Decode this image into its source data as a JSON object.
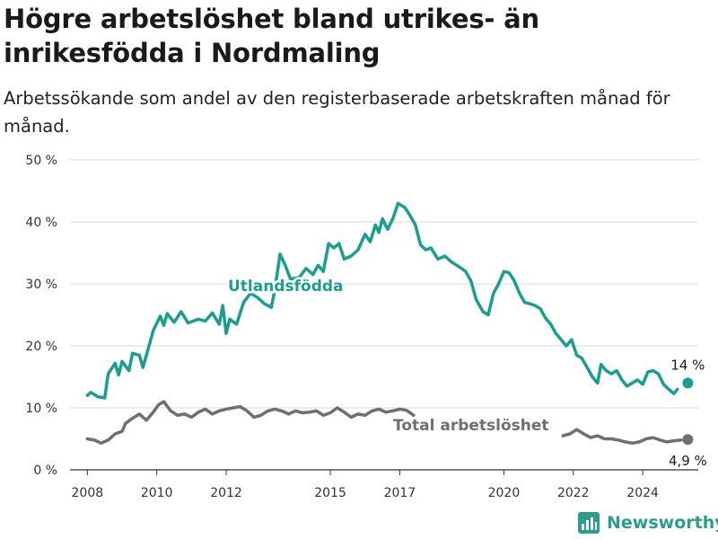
{
  "title": "Högre arbetslöshet bland utrikes- än inrikesfödda i Nordmaling",
  "subtitle": "Arbetssökande som andel av den registerbaserade arbetskraften månad för månad.",
  "brand": "Newsworthy",
  "colors": {
    "foreign": "#1a9e8f",
    "total": "#6f6f6f",
    "grid": "#d9d9d9",
    "text": "#1a1a1a"
  },
  "chart_data": {
    "type": "line",
    "ylim": [
      0,
      50
    ],
    "yticks": [
      0,
      10,
      20,
      30,
      40,
      50
    ],
    "ytick_labels": [
      "0 %",
      "10 %",
      "20 %",
      "30 %",
      "40 %",
      "50 %"
    ],
    "xlim": [
      2007.5,
      2025.6
    ],
    "xticks": [
      2008,
      2010,
      2012,
      2015,
      2017,
      2020,
      2022,
      2024
    ],
    "xtick_labels": [
      "2008",
      "2010",
      "2012",
      "2015",
      "2017",
      "2020",
      "2022",
      "2024"
    ],
    "grid": true,
    "series": [
      {
        "name": "Utlandsfödda",
        "end_label": "14 %",
        "points": [
          [
            2008.0,
            12.0
          ],
          [
            2008.1,
            12.5
          ],
          [
            2008.3,
            11.8
          ],
          [
            2008.5,
            11.6
          ],
          [
            2008.6,
            15.5
          ],
          [
            2008.8,
            17.2
          ],
          [
            2008.9,
            15.3
          ],
          [
            2009.0,
            17.5
          ],
          [
            2009.2,
            16.0
          ],
          [
            2009.3,
            18.8
          ],
          [
            2009.5,
            18.5
          ],
          [
            2009.6,
            16.5
          ],
          [
            2009.8,
            20.5
          ],
          [
            2009.9,
            22.5
          ],
          [
            2010.1,
            24.8
          ],
          [
            2010.2,
            23.3
          ],
          [
            2010.3,
            25.2
          ],
          [
            2010.5,
            23.8
          ],
          [
            2010.7,
            25.5
          ],
          [
            2010.9,
            23.7
          ],
          [
            2011.2,
            24.3
          ],
          [
            2011.4,
            24.0
          ],
          [
            2011.6,
            25.3
          ],
          [
            2011.8,
            23.5
          ],
          [
            2011.9,
            26.5
          ],
          [
            2012.0,
            22.0
          ],
          [
            2012.1,
            24.3
          ],
          [
            2012.3,
            23.5
          ],
          [
            2012.5,
            27.0
          ],
          [
            2012.7,
            28.5
          ],
          [
            2012.9,
            27.8
          ],
          [
            2013.1,
            26.8
          ],
          [
            2013.3,
            26.2
          ],
          [
            2013.4,
            29.0
          ],
          [
            2013.55,
            34.8
          ],
          [
            2013.7,
            33.0
          ],
          [
            2013.85,
            30.8
          ],
          [
            2014.1,
            31.0
          ],
          [
            2014.3,
            32.5
          ],
          [
            2014.5,
            31.5
          ],
          [
            2014.65,
            33.0
          ],
          [
            2014.8,
            32.0
          ],
          [
            2014.95,
            36.5
          ],
          [
            2015.1,
            35.8
          ],
          [
            2015.25,
            36.5
          ],
          [
            2015.4,
            34.0
          ],
          [
            2015.6,
            34.5
          ],
          [
            2015.8,
            35.5
          ],
          [
            2016.0,
            38.0
          ],
          [
            2016.15,
            36.8
          ],
          [
            2016.3,
            39.5
          ],
          [
            2016.4,
            38.3
          ],
          [
            2016.5,
            40.5
          ],
          [
            2016.65,
            38.8
          ],
          [
            2016.8,
            40.5
          ],
          [
            2016.95,
            43.0
          ],
          [
            2017.15,
            42.3
          ],
          [
            2017.3,
            41.0
          ],
          [
            2017.45,
            39.5
          ],
          [
            2017.6,
            36.3
          ],
          [
            2017.75,
            35.5
          ],
          [
            2017.9,
            35.8
          ],
          [
            2018.1,
            34.0
          ],
          [
            2018.3,
            34.5
          ],
          [
            2018.5,
            33.5
          ],
          [
            2018.7,
            32.8
          ],
          [
            2018.9,
            32.0
          ],
          [
            2019.05,
            30.5
          ],
          [
            2019.2,
            27.5
          ],
          [
            2019.4,
            25.5
          ],
          [
            2019.55,
            25.0
          ],
          [
            2019.7,
            28.5
          ],
          [
            2019.85,
            30.0
          ],
          [
            2020.0,
            32.0
          ],
          [
            2020.15,
            31.8
          ],
          [
            2020.3,
            30.5
          ],
          [
            2020.45,
            28.5
          ],
          [
            2020.6,
            27.0
          ],
          [
            2020.75,
            26.8
          ],
          [
            2020.9,
            26.5
          ],
          [
            2021.05,
            26.0
          ],
          [
            2021.2,
            24.5
          ],
          [
            2021.35,
            23.5
          ],
          [
            2021.5,
            22.0
          ],
          [
            2021.65,
            21.0
          ],
          [
            2021.8,
            20.0
          ],
          [
            2021.95,
            21.0
          ],
          [
            2022.1,
            18.5
          ],
          [
            2022.25,
            18.0
          ],
          [
            2022.4,
            16.5
          ],
          [
            2022.55,
            15.0
          ],
          [
            2022.7,
            14.0
          ],
          [
            2022.8,
            17.0
          ],
          [
            2022.95,
            16.0
          ],
          [
            2023.1,
            15.5
          ],
          [
            2023.25,
            16.0
          ],
          [
            2023.4,
            14.5
          ],
          [
            2023.55,
            13.5
          ],
          [
            2023.7,
            14.0
          ],
          [
            2023.85,
            14.5
          ],
          [
            2024.0,
            13.8
          ],
          [
            2024.15,
            15.8
          ],
          [
            2024.3,
            16.0
          ],
          [
            2024.45,
            15.5
          ],
          [
            2024.6,
            13.8
          ],
          [
            2024.75,
            13.0
          ],
          [
            2024.9,
            12.3
          ],
          [
            2025.0,
            13.0
          ]
        ],
        "end_point": [
          2025.3,
          14.0
        ]
      },
      {
        "name": "Total arbetslöshet",
        "end_label": "4,9 %",
        "points": [
          [
            2008.0,
            5.0
          ],
          [
            2008.2,
            4.8
          ],
          [
            2008.4,
            4.3
          ],
          [
            2008.6,
            4.8
          ],
          [
            2008.8,
            5.8
          ],
          [
            2009.0,
            6.2
          ],
          [
            2009.1,
            7.5
          ],
          [
            2009.3,
            8.3
          ],
          [
            2009.5,
            9.0
          ],
          [
            2009.7,
            8.0
          ],
          [
            2009.9,
            9.3
          ],
          [
            2010.05,
            10.5
          ],
          [
            2010.2,
            11.0
          ],
          [
            2010.4,
            9.5
          ],
          [
            2010.6,
            8.8
          ],
          [
            2010.8,
            9.0
          ],
          [
            2011.0,
            8.5
          ],
          [
            2011.2,
            9.3
          ],
          [
            2011.4,
            9.8
          ],
          [
            2011.6,
            9.0
          ],
          [
            2011.8,
            9.5
          ],
          [
            2012.0,
            9.8
          ],
          [
            2012.2,
            10.0
          ],
          [
            2012.4,
            10.2
          ],
          [
            2012.6,
            9.5
          ],
          [
            2012.8,
            8.5
          ],
          [
            2013.0,
            8.8
          ],
          [
            2013.2,
            9.5
          ],
          [
            2013.4,
            9.8
          ],
          [
            2013.6,
            9.5
          ],
          [
            2013.8,
            9.0
          ],
          [
            2014.0,
            9.5
          ],
          [
            2014.2,
            9.2
          ],
          [
            2014.4,
            9.3
          ],
          [
            2014.6,
            9.5
          ],
          [
            2014.8,
            8.8
          ],
          [
            2015.0,
            9.2
          ],
          [
            2015.2,
            10.0
          ],
          [
            2015.4,
            9.3
          ],
          [
            2015.6,
            8.5
          ],
          [
            2015.8,
            9.0
          ],
          [
            2016.0,
            8.8
          ],
          [
            2016.2,
            9.5
          ],
          [
            2016.4,
            9.8
          ],
          [
            2016.6,
            9.3
          ],
          [
            2016.8,
            9.5
          ],
          [
            2017.0,
            9.8
          ],
          [
            2017.2,
            9.6
          ],
          [
            2017.4,
            8.8
          ]
        ],
        "points_2": [
          [
            2021.7,
            5.5
          ],
          [
            2021.9,
            5.8
          ],
          [
            2022.1,
            6.5
          ],
          [
            2022.3,
            5.8
          ],
          [
            2022.5,
            5.2
          ],
          [
            2022.7,
            5.5
          ],
          [
            2022.9,
            5.0
          ],
          [
            2023.1,
            5.0
          ],
          [
            2023.3,
            4.8
          ],
          [
            2023.5,
            4.5
          ],
          [
            2023.7,
            4.3
          ],
          [
            2023.9,
            4.5
          ],
          [
            2024.1,
            5.0
          ],
          [
            2024.3,
            5.2
          ],
          [
            2024.5,
            4.8
          ],
          [
            2024.7,
            4.5
          ],
          [
            2024.9,
            4.7
          ],
          [
            2025.1,
            4.8
          ]
        ],
        "end_point": [
          2025.3,
          4.9
        ]
      }
    ]
  }
}
